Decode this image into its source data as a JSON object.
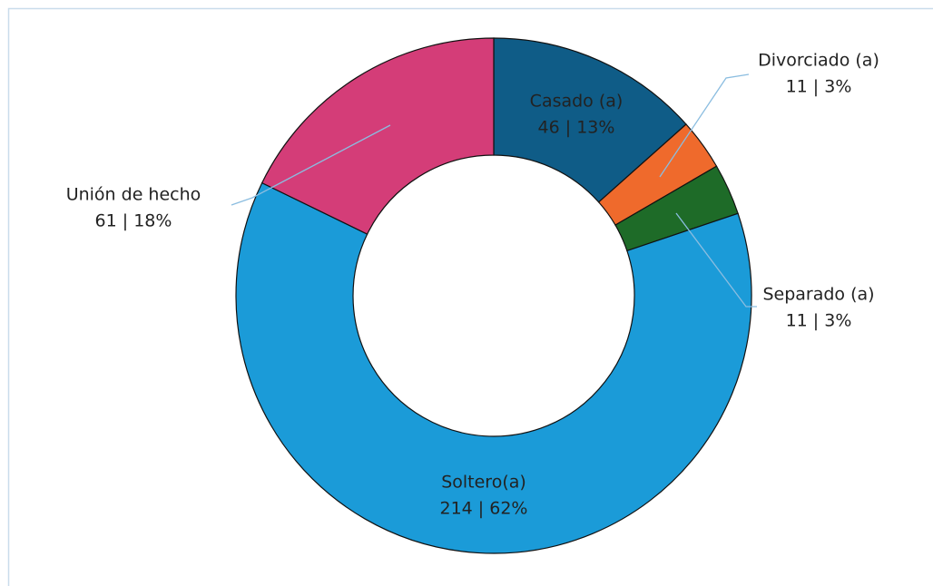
{
  "chart_data": {
    "type": "donut",
    "categories": [
      "Casado (a)",
      "Divorciado (a)",
      "Separado (a)",
      "Soltero(a)",
      "Unión de hecho"
    ],
    "values": [
      46,
      11,
      11,
      214,
      61
    ],
    "value_labels": [
      "46 | 13%",
      "11 | 3%",
      "11 | 3%",
      "214 | 62%",
      "61 | 18%"
    ],
    "colors": [
      "#0f5c87",
      "#ef6a2c",
      "#1e6b28",
      "#1b9bd8",
      "#d43d78"
    ]
  }
}
